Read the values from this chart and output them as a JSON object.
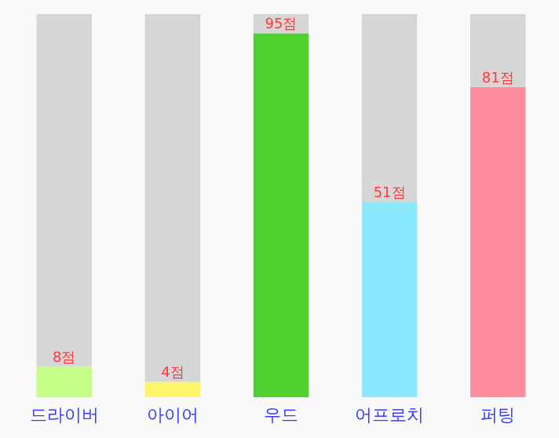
{
  "chart_data": {
    "type": "bar",
    "stacked": true,
    "categories": [
      "드라이버",
      "아이어",
      "우드",
      "어프로치",
      "퍼팅"
    ],
    "ylim": [
      0,
      100
    ],
    "tick_labels": "x",
    "series": [
      {
        "colors": [
          "#c4ff87",
          "#fff56a",
          "#4fd22f",
          "#8ae9ff",
          "#ff8c9c"
        ],
        "values": [
          8,
          4,
          95,
          51,
          81
        ],
        "value_labels": [
          "8점",
          "4점",
          "95점",
          "51점",
          "81점"
        ]
      },
      {
        "color": "#d6d6d6",
        "values": [
          92,
          96,
          5,
          49,
          19
        ]
      }
    ]
  }
}
